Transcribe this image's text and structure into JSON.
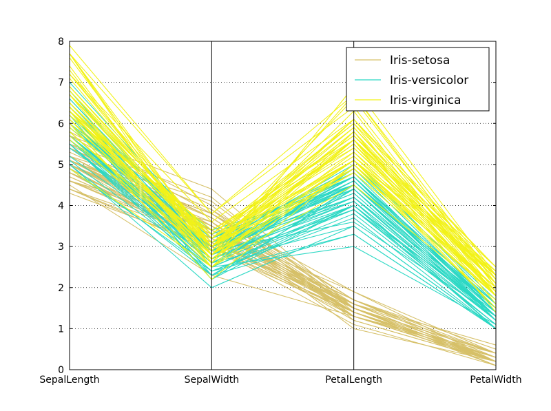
{
  "chart_data": {
    "type": "parallel-coordinates",
    "title": "",
    "axes": [
      "SepalLength",
      "SepalWidth",
      "PetalLength",
      "PetalWidth"
    ],
    "ylim": [
      0,
      8
    ],
    "yticks": [
      "0",
      "1",
      "2",
      "3",
      "4",
      "5",
      "6",
      "7",
      "8"
    ],
    "grid": "horizontal-dotted",
    "legend": {
      "placement": "top-right",
      "entries": [
        "Iris-setosa",
        "Iris-versicolor",
        "Iris-virginica"
      ]
    },
    "series": [
      {
        "name": "Iris-setosa",
        "color": "#d6c068",
        "rows": [
          [
            5.1,
            3.5,
            1.4,
            0.2
          ],
          [
            4.9,
            3.0,
            1.4,
            0.2
          ],
          [
            4.7,
            3.2,
            1.3,
            0.2
          ],
          [
            4.6,
            3.1,
            1.5,
            0.2
          ],
          [
            5.0,
            3.6,
            1.4,
            0.2
          ],
          [
            5.4,
            3.9,
            1.7,
            0.4
          ],
          [
            4.6,
            3.4,
            1.4,
            0.3
          ],
          [
            5.0,
            3.4,
            1.5,
            0.2
          ],
          [
            4.4,
            2.9,
            1.4,
            0.2
          ],
          [
            4.9,
            3.1,
            1.5,
            0.1
          ],
          [
            5.4,
            3.7,
            1.5,
            0.2
          ],
          [
            4.8,
            3.4,
            1.6,
            0.2
          ],
          [
            4.8,
            3.0,
            1.4,
            0.1
          ],
          [
            4.3,
            3.0,
            1.1,
            0.1
          ],
          [
            5.8,
            4.0,
            1.2,
            0.2
          ],
          [
            5.7,
            4.4,
            1.5,
            0.4
          ],
          [
            5.4,
            3.9,
            1.3,
            0.4
          ],
          [
            5.1,
            3.5,
            1.4,
            0.3
          ],
          [
            5.7,
            3.8,
            1.7,
            0.3
          ],
          [
            5.1,
            3.8,
            1.5,
            0.3
          ],
          [
            5.4,
            3.4,
            1.7,
            0.2
          ],
          [
            5.1,
            3.7,
            1.5,
            0.4
          ],
          [
            4.6,
            3.6,
            1.0,
            0.2
          ],
          [
            5.1,
            3.3,
            1.7,
            0.5
          ],
          [
            4.8,
            3.4,
            1.9,
            0.2
          ],
          [
            5.0,
            3.0,
            1.6,
            0.2
          ],
          [
            5.0,
            3.4,
            1.6,
            0.4
          ],
          [
            5.2,
            3.5,
            1.5,
            0.2
          ],
          [
            5.2,
            3.4,
            1.4,
            0.2
          ],
          [
            4.7,
            3.2,
            1.6,
            0.2
          ],
          [
            4.8,
            3.1,
            1.6,
            0.2
          ],
          [
            5.4,
            3.4,
            1.5,
            0.4
          ],
          [
            5.2,
            4.1,
            1.5,
            0.1
          ],
          [
            5.5,
            4.2,
            1.4,
            0.2
          ],
          [
            4.9,
            3.1,
            1.5,
            0.1
          ],
          [
            5.0,
            3.2,
            1.2,
            0.2
          ],
          [
            5.5,
            3.5,
            1.3,
            0.2
          ],
          [
            4.9,
            3.1,
            1.5,
            0.1
          ],
          [
            4.4,
            3.0,
            1.3,
            0.2
          ],
          [
            5.1,
            3.4,
            1.5,
            0.2
          ],
          [
            5.0,
            3.5,
            1.3,
            0.3
          ],
          [
            4.5,
            2.3,
            1.3,
            0.3
          ],
          [
            4.4,
            3.2,
            1.3,
            0.2
          ],
          [
            5.0,
            3.5,
            1.6,
            0.6
          ],
          [
            5.1,
            3.8,
            1.9,
            0.4
          ],
          [
            4.8,
            3.0,
            1.4,
            0.3
          ],
          [
            5.1,
            3.8,
            1.6,
            0.2
          ],
          [
            4.6,
            3.2,
            1.4,
            0.2
          ],
          [
            5.3,
            3.7,
            1.5,
            0.2
          ],
          [
            5.0,
            3.3,
            1.4,
            0.2
          ]
        ]
      },
      {
        "name": "Iris-versicolor",
        "color": "#2bd8c4",
        "rows": [
          [
            7.0,
            3.2,
            4.7,
            1.4
          ],
          [
            6.4,
            3.2,
            4.5,
            1.5
          ],
          [
            6.9,
            3.1,
            4.9,
            1.5
          ],
          [
            5.5,
            2.3,
            4.0,
            1.3
          ],
          [
            6.5,
            2.8,
            4.6,
            1.5
          ],
          [
            5.7,
            2.8,
            4.5,
            1.3
          ],
          [
            6.3,
            3.3,
            4.7,
            1.6
          ],
          [
            4.9,
            2.4,
            3.3,
            1.0
          ],
          [
            6.6,
            2.9,
            4.6,
            1.3
          ],
          [
            5.2,
            2.7,
            3.9,
            1.4
          ],
          [
            5.0,
            2.0,
            3.5,
            1.0
          ],
          [
            5.9,
            3.0,
            4.2,
            1.5
          ],
          [
            6.0,
            2.2,
            4.0,
            1.0
          ],
          [
            6.1,
            2.9,
            4.7,
            1.4
          ],
          [
            5.6,
            2.9,
            3.6,
            1.3
          ],
          [
            6.7,
            3.1,
            4.4,
            1.4
          ],
          [
            5.6,
            3.0,
            4.5,
            1.5
          ],
          [
            5.8,
            2.7,
            4.1,
            1.0
          ],
          [
            6.2,
            2.2,
            4.5,
            1.5
          ],
          [
            5.6,
            2.5,
            3.9,
            1.1
          ],
          [
            5.9,
            3.2,
            4.8,
            1.8
          ],
          [
            6.1,
            2.8,
            4.0,
            1.3
          ],
          [
            6.3,
            2.5,
            4.9,
            1.5
          ],
          [
            6.1,
            2.8,
            4.7,
            1.2
          ],
          [
            6.4,
            2.9,
            4.3,
            1.3
          ],
          [
            6.6,
            3.0,
            4.4,
            1.4
          ],
          [
            6.8,
            2.8,
            4.8,
            1.4
          ],
          [
            6.7,
            3.0,
            5.0,
            1.7
          ],
          [
            6.0,
            2.9,
            4.5,
            1.5
          ],
          [
            5.7,
            2.6,
            3.5,
            1.0
          ],
          [
            5.5,
            2.4,
            3.8,
            1.1
          ],
          [
            5.5,
            2.4,
            3.7,
            1.0
          ],
          [
            5.8,
            2.7,
            3.9,
            1.2
          ],
          [
            6.0,
            2.7,
            5.1,
            1.6
          ],
          [
            5.4,
            3.0,
            4.5,
            1.5
          ],
          [
            6.0,
            3.4,
            4.5,
            1.6
          ],
          [
            6.7,
            3.1,
            4.7,
            1.5
          ],
          [
            6.3,
            2.3,
            4.4,
            1.3
          ],
          [
            5.6,
            3.0,
            4.1,
            1.3
          ],
          [
            5.5,
            2.5,
            4.0,
            1.3
          ],
          [
            5.5,
            2.6,
            4.4,
            1.2
          ],
          [
            6.1,
            3.0,
            4.6,
            1.4
          ],
          [
            5.8,
            2.6,
            4.0,
            1.2
          ],
          [
            5.0,
            2.3,
            3.3,
            1.0
          ],
          [
            5.6,
            2.7,
            4.2,
            1.3
          ],
          [
            5.7,
            3.0,
            4.2,
            1.2
          ],
          [
            5.7,
            2.9,
            4.2,
            1.3
          ],
          [
            6.2,
            2.9,
            4.3,
            1.3
          ],
          [
            5.1,
            2.5,
            3.0,
            1.1
          ],
          [
            5.7,
            2.8,
            4.1,
            1.3
          ]
        ]
      },
      {
        "name": "Iris-virginica",
        "color": "#f2f218",
        "rows": [
          [
            6.3,
            3.3,
            6.0,
            2.5
          ],
          [
            5.8,
            2.7,
            5.1,
            1.9
          ],
          [
            7.1,
            3.0,
            5.9,
            2.1
          ],
          [
            6.3,
            2.9,
            5.6,
            1.8
          ],
          [
            6.5,
            3.0,
            5.8,
            2.2
          ],
          [
            7.6,
            3.0,
            6.6,
            2.1
          ],
          [
            4.9,
            2.5,
            4.5,
            1.7
          ],
          [
            7.3,
            2.9,
            6.3,
            1.8
          ],
          [
            6.7,
            2.5,
            5.8,
            1.8
          ],
          [
            7.2,
            3.6,
            6.1,
            2.5
          ],
          [
            6.5,
            3.2,
            5.1,
            2.0
          ],
          [
            6.4,
            2.7,
            5.3,
            1.9
          ],
          [
            6.8,
            3.0,
            5.5,
            2.1
          ],
          [
            5.7,
            2.5,
            5.0,
            2.0
          ],
          [
            5.8,
            2.8,
            5.1,
            2.4
          ],
          [
            6.4,
            3.2,
            5.3,
            2.3
          ],
          [
            6.5,
            3.0,
            5.5,
            1.8
          ],
          [
            7.7,
            3.8,
            6.7,
            2.2
          ],
          [
            7.7,
            2.6,
            6.9,
            2.3
          ],
          [
            6.0,
            2.2,
            5.0,
            1.5
          ],
          [
            6.9,
            3.2,
            5.7,
            2.3
          ],
          [
            5.6,
            2.8,
            4.9,
            2.0
          ],
          [
            7.7,
            2.8,
            6.7,
            2.0
          ],
          [
            6.3,
            2.7,
            4.9,
            1.8
          ],
          [
            6.7,
            3.3,
            5.7,
            2.1
          ],
          [
            7.2,
            3.2,
            6.0,
            1.8
          ],
          [
            6.2,
            2.8,
            4.8,
            1.8
          ],
          [
            6.1,
            3.0,
            4.9,
            1.8
          ],
          [
            6.4,
            2.8,
            5.6,
            2.1
          ],
          [
            7.2,
            3.0,
            5.8,
            1.6
          ],
          [
            7.4,
            2.8,
            6.1,
            1.9
          ],
          [
            7.9,
            3.8,
            6.4,
            2.0
          ],
          [
            6.4,
            2.8,
            5.6,
            2.2
          ],
          [
            6.3,
            2.8,
            5.1,
            1.5
          ],
          [
            6.1,
            2.6,
            5.6,
            1.4
          ],
          [
            7.7,
            3.0,
            6.1,
            2.3
          ],
          [
            6.3,
            3.4,
            5.6,
            2.4
          ],
          [
            6.4,
            3.1,
            5.5,
            1.8
          ],
          [
            6.0,
            3.0,
            4.8,
            1.8
          ],
          [
            6.9,
            3.1,
            5.4,
            2.1
          ],
          [
            6.7,
            3.1,
            5.6,
            2.4
          ],
          [
            6.9,
            3.1,
            5.1,
            2.3
          ],
          [
            5.8,
            2.7,
            5.1,
            1.9
          ],
          [
            6.8,
            3.2,
            5.9,
            2.3
          ],
          [
            6.7,
            3.3,
            5.7,
            2.5
          ],
          [
            6.7,
            3.0,
            5.2,
            2.3
          ],
          [
            6.3,
            2.5,
            5.0,
            1.9
          ],
          [
            6.5,
            3.0,
            5.2,
            2.0
          ],
          [
            6.2,
            3.4,
            5.4,
            2.3
          ],
          [
            5.9,
            3.0,
            5.1,
            1.8
          ]
        ]
      }
    ]
  }
}
